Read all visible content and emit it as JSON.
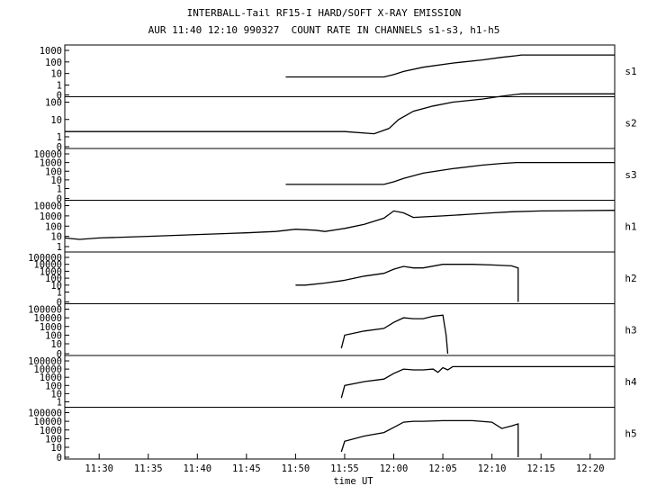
{
  "chart_data": {
    "type": "line",
    "title": "INTERBALL-Tail RF15-I HARD/SOFT X-RAY EMISSION",
    "subtitle": "AUR 11:40 12:10 990327  COUNT RATE IN CHANNELS s1-s3, h1-h5",
    "xlabel": "time UT",
    "x_ticks": [
      "11:30",
      "11:35",
      "11:40",
      "11:45",
      "11:50",
      "11:55",
      "12:00",
      "12:05",
      "12:10",
      "12:15",
      "12:20"
    ],
    "xlim": [
      "11:26:30",
      "12:22:30"
    ],
    "yscale": "log",
    "grid": false,
    "panels": [
      {
        "name": "s1",
        "y_ticks": [
          "1000",
          "100",
          "10",
          "1",
          "0"
        ],
        "series": [
          {
            "x": [
              "11:49:00",
              "11:51:00",
              "11:54:00",
              "11:57:00",
              "11:59:00",
              "12:00:00",
              "12:01:00",
              "12:03:00",
              "12:06:00",
              "12:09:00",
              "12:11:00",
              "12:12:30",
              "12:13:00",
              "12:22:30"
            ],
            "y": [
              5,
              5,
              5,
              5,
              5,
              8,
              15,
              35,
              80,
              150,
              250,
              350,
              400,
              400
            ]
          }
        ]
      },
      {
        "name": "s2",
        "y_ticks": [
          "100",
          "10",
          "1",
          "0"
        ],
        "series": [
          {
            "x": [
              "11:26:30",
              "11:30:00",
              "11:35:00",
              "11:40:00",
              "11:45:00",
              "11:49:00",
              "11:52:00",
              "11:55:00",
              "11:58:00",
              "11:59:30",
              "12:00:30",
              "12:02:00",
              "12:04:00",
              "12:06:00",
              "12:09:00",
              "12:11:00",
              "12:12:30",
              "12:13:00",
              "12:22:30"
            ],
            "y": [
              2,
              2,
              2,
              2,
              2,
              2,
              2,
              2,
              1.5,
              3,
              10,
              30,
              60,
              100,
              150,
              220,
              280,
              300,
              300
            ]
          }
        ]
      },
      {
        "name": "s3",
        "y_ticks": [
          "10000",
          "1000",
          "100",
          "10",
          "1",
          "0"
        ],
        "series": [
          {
            "x": [
              "11:49:00",
              "11:51:00",
              "11:54:00",
              "11:57:00",
              "11:59:00",
              "12:00:00",
              "12:01:00",
              "12:03:00",
              "12:06:00",
              "12:09:00",
              "12:11:00",
              "12:12:30",
              "12:13:00",
              "12:22:30"
            ],
            "y": [
              3,
              3,
              3,
              3,
              3,
              6,
              15,
              60,
              200,
              500,
              800,
              1000,
              1000,
              1000
            ]
          }
        ]
      },
      {
        "name": "h1",
        "y_ticks": [
          "10000",
          "1000",
          "100",
          "10",
          "1"
        ],
        "series": [
          {
            "x": [
              "11:26:30",
              "11:28:00",
              "11:30:00",
              "11:35:00",
              "11:40:00",
              "11:45:00",
              "11:48:00",
              "11:50:00",
              "11:52:00",
              "11:53:00",
              "11:55:00",
              "11:57:00",
              "11:59:00",
              "12:00:00",
              "12:01:00",
              "12:02:00",
              "12:03:00",
              "12:05:00",
              "12:08:00",
              "12:10:00",
              "12:12:00",
              "12:15:00",
              "12:22:30"
            ],
            "y": [
              7,
              5,
              7,
              10,
              15,
              22,
              30,
              50,
              40,
              30,
              60,
              150,
              600,
              3000,
              2000,
              700,
              800,
              1000,
              1500,
              2000,
              2500,
              3000,
              3500
            ]
          }
        ]
      },
      {
        "name": "h2",
        "y_ticks": [
          "100000",
          "10000",
          "1000",
          "100",
          "10",
          "1",
          "0"
        ],
        "series": [
          {
            "x": [
              "11:50:00",
              "11:51:00",
              "11:53:00",
              "11:55:00",
              "11:57:00",
              "11:59:00",
              "12:00:00",
              "12:01:00",
              "12:02:00",
              "12:03:00",
              "12:05:00",
              "12:08:00",
              "12:10:00",
              "12:12:00",
              "12:12:40",
              "12:12:40"
            ],
            "y": [
              10,
              10,
              20,
              50,
              200,
              500,
              2000,
              5000,
              3000,
              3000,
              10000,
              10000,
              8000,
              6000,
              3000,
              0
            ]
          }
        ]
      },
      {
        "name": "h3",
        "y_ticks": [
          "100000",
          "10000",
          "1000",
          "100",
          "10",
          "0"
        ],
        "series": [
          {
            "x": [
              "11:54:40",
              "11:55:00",
              "11:57:00",
              "11:59:00",
              "12:00:00",
              "12:01:00",
              "12:02:00",
              "12:03:00",
              "12:04:00",
              "12:05:00",
              "12:05:20",
              "12:05:30"
            ],
            "y": [
              3,
              100,
              300,
              600,
              3000,
              10000,
              8000,
              8000,
              15000,
              20000,
              100,
              0
            ]
          }
        ]
      },
      {
        "name": "h4",
        "y_ticks": [
          "100000",
          "10000",
          "1000",
          "100",
          "10",
          "1"
        ],
        "series": [
          {
            "x": [
              "11:54:40",
              "11:55:00",
              "11:57:00",
              "11:59:00",
              "12:00:00",
              "12:01:00",
              "12:02:00",
              "12:03:00",
              "12:04:00",
              "12:04:30",
              "12:05:00",
              "12:05:30",
              "12:06:00",
              "12:10:00",
              "12:12:00",
              "12:22:30"
            ],
            "y": [
              3,
              100,
              300,
              600,
              3000,
              10000,
              8000,
              8000,
              10000,
              4000,
              15000,
              8000,
              20000,
              20000,
              20000,
              20000
            ]
          }
        ]
      },
      {
        "name": "h5",
        "y_ticks": [
          "100000",
          "10000",
          "1000",
          "100",
          "10",
          "0"
        ],
        "series": [
          {
            "x": [
              "11:54:40",
              "11:55:00",
              "11:57:00",
              "11:59:00",
              "12:00:00",
              "12:01:00",
              "12:02:00",
              "12:03:00",
              "12:05:00",
              "12:08:00",
              "12:10:00",
              "12:11:00",
              "12:12:00",
              "12:12:40",
              "12:12:40"
            ],
            "y": [
              3,
              50,
              200,
              500,
              2000,
              8000,
              10000,
              10000,
              12000,
              12000,
              8000,
              1500,
              3000,
              5000,
              0
            ]
          }
        ]
      }
    ]
  }
}
